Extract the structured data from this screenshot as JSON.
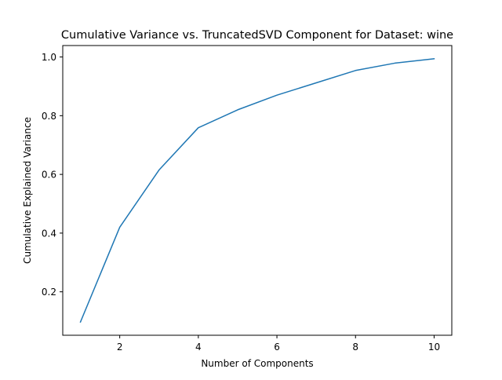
{
  "chart_data": {
    "type": "line",
    "title": "Cumulative Variance vs. TruncatedSVD Component for Dataset: wine",
    "xlabel": "Number of Components",
    "ylabel": "Cumulative Explained Variance",
    "x": [
      1,
      2,
      3,
      4,
      5,
      6,
      7,
      8,
      9,
      10
    ],
    "series": [
      {
        "values": [
          0.097,
          0.42,
          0.615,
          0.759,
          0.82,
          0.87,
          0.912,
          0.954,
          0.979,
          0.994
        ],
        "color": "#1f77b4"
      }
    ],
    "xlim": [
      0.55,
      10.45
    ],
    "ylim": [
      0.052,
      1.039
    ],
    "xticks": [
      2,
      4,
      6,
      8,
      10
    ],
    "xtick_labels": [
      "2",
      "4",
      "6",
      "8",
      "10"
    ],
    "yticks": [
      0.2,
      0.4,
      0.6,
      0.8,
      1.0
    ],
    "ytick_labels": [
      "0.2",
      "0.4",
      "0.6",
      "0.8",
      "1.0"
    ],
    "grid": false,
    "legend": "none"
  }
}
